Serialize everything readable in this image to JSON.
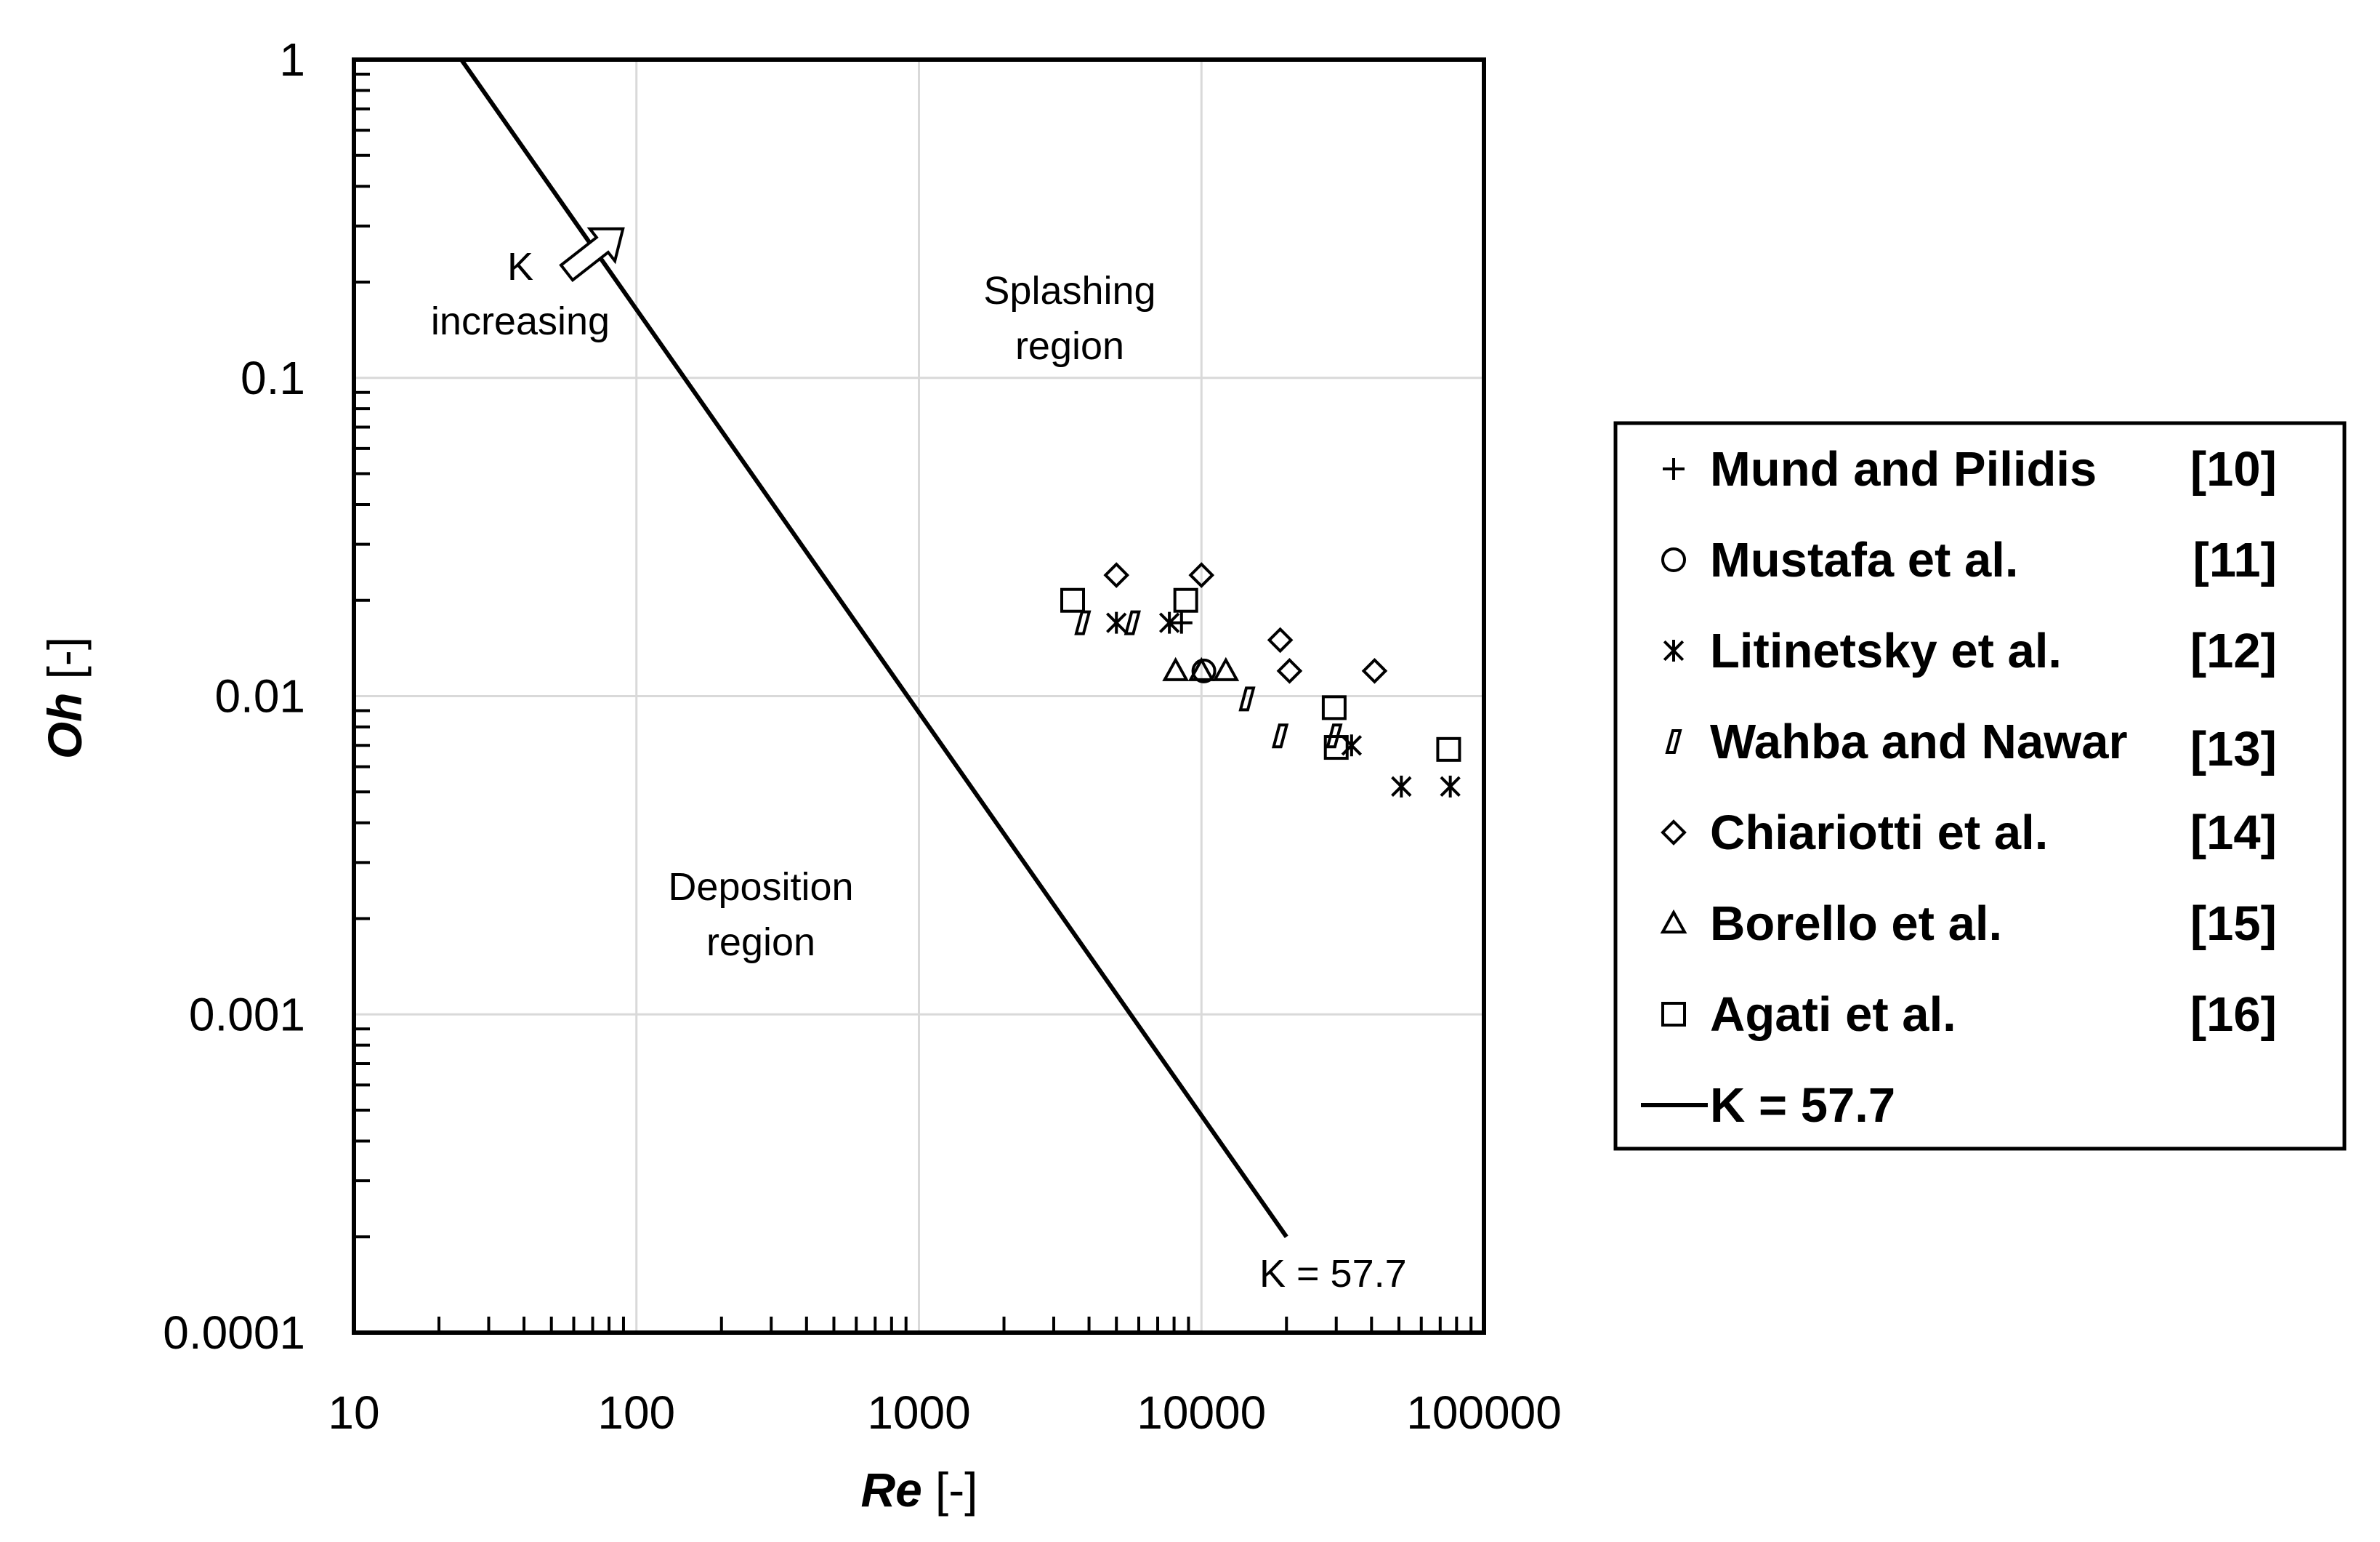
{
  "chart_data": {
    "type": "scatter",
    "xscale": "log",
    "yscale": "log",
    "xlim": [
      10,
      100000
    ],
    "ylim": [
      0.0001,
      1
    ],
    "xlabel": {
      "italic": "Re",
      "unit": "[-]"
    },
    "ylabel": {
      "italic": "Oh",
      "unit": "[-]"
    },
    "grid": true,
    "x_tick_labels": [
      "10",
      "100",
      "1000",
      "10000",
      "100000"
    ],
    "y_tick_labels": [
      "0.0001",
      "0.001",
      "0.01",
      "0.1",
      "1"
    ],
    "series": [
      {
        "name": "Mund and Pilidis",
        "ref": "[10]",
        "marker": "plus",
        "points": [
          [
            8500,
            0.017
          ]
        ]
      },
      {
        "name": "Mustafa et al.",
        "ref": "[11]",
        "marker": "circle",
        "points": [
          [
            10200,
            0.012
          ]
        ]
      },
      {
        "name": "Litinetsky et al.",
        "ref": "[12]",
        "marker": "asterisk",
        "points": [
          [
            5000,
            0.017
          ],
          [
            7700,
            0.017
          ],
          [
            34000,
            0.007
          ],
          [
            51000,
            0.0052
          ],
          [
            76000,
            0.0052
          ]
        ]
      },
      {
        "name": "Wahba and Nawar",
        "ref": "[13]",
        "marker": "parallelogram",
        "points": [
          [
            3800,
            0.017
          ],
          [
            5700,
            0.017
          ],
          [
            14500,
            0.0098
          ],
          [
            19000,
            0.0075
          ],
          [
            29500,
            0.0075
          ]
        ]
      },
      {
        "name": "Chiariotti et al.",
        "ref": "[14]",
        "marker": "diamond",
        "points": [
          [
            5000,
            0.024
          ],
          [
            10000,
            0.024
          ],
          [
            19000,
            0.015
          ],
          [
            20500,
            0.012
          ],
          [
            41000,
            0.012
          ]
        ]
      },
      {
        "name": "Borello et al.",
        "ref": "[15]",
        "marker": "triangle",
        "points": [
          [
            8100,
            0.012
          ],
          [
            10000,
            0.012
          ],
          [
            12200,
            0.012
          ]
        ]
      },
      {
        "name": "Agati et al.",
        "ref": "[16]",
        "marker": "square",
        "points": [
          [
            3500,
            0.02
          ],
          [
            8800,
            0.02
          ],
          [
            29500,
            0.0092
          ],
          [
            30000,
            0.0069
          ],
          [
            75000,
            0.0068
          ]
        ]
      }
    ],
    "lines": [
      {
        "name": "K = 57.7",
        "type": "line",
        "x": [
          24,
          20000
        ],
        "y": [
          1,
          0.0002
        ]
      }
    ],
    "annotations": {
      "k_increasing": [
        "K",
        "increasing"
      ],
      "splashing": [
        "Splashing",
        "region"
      ],
      "deposition": [
        "Deposition",
        "region"
      ],
      "line_label": "K = 57.7"
    },
    "legend": {
      "placement": "right",
      "line_entry_label": "K = 57.7"
    }
  }
}
